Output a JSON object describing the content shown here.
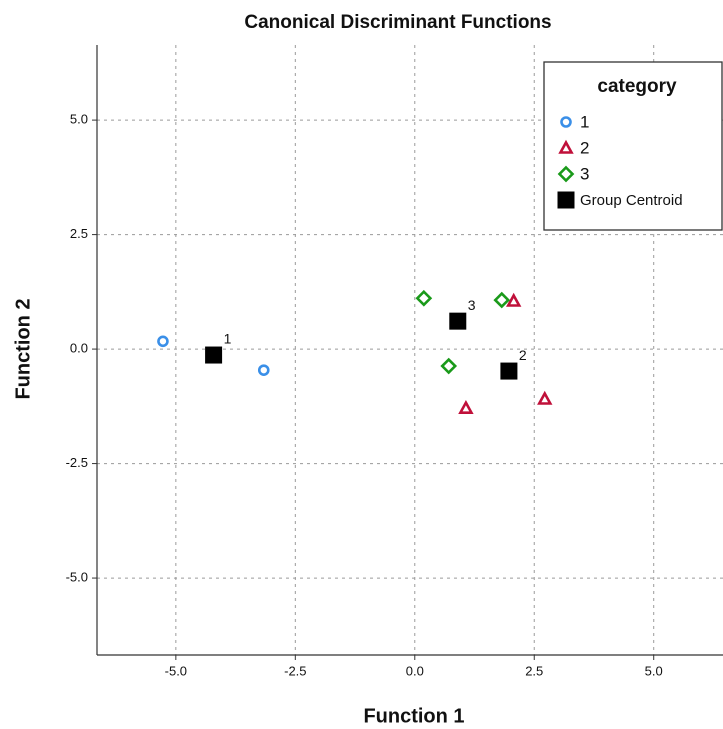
{
  "chart_data": {
    "type": "scatter",
    "title": "Canonical Discriminant Functions",
    "x_label": "Function 1",
    "y_label": "Function 2",
    "xlim": [
      -6.65,
      6.45
    ],
    "ylim": [
      -6.68,
      6.64
    ],
    "xticks": [
      {
        "value": -5,
        "label": "-5.0"
      },
      {
        "value": -2.5,
        "label": "-2.5"
      },
      {
        "value": 0,
        "label": "0.0"
      },
      {
        "value": 2.5,
        "label": "2.5"
      },
      {
        "value": 5,
        "label": "5.0"
      }
    ],
    "yticks": [
      {
        "value": -5,
        "label": "-5.0"
      },
      {
        "value": -2.5,
        "label": "-2.5"
      },
      {
        "value": 0,
        "label": "0.0"
      },
      {
        "value": 2.5,
        "label": "2.5"
      },
      {
        "value": 5,
        "label": "5.0"
      }
    ],
    "grid": true,
    "legend_title": "category",
    "legend_position": "upper right",
    "series": [
      {
        "name": "1",
        "color": "#3a8fe8",
        "marker": "circle",
        "x": [
          -5.27,
          -3.16
        ],
        "y": [
          0.17,
          -0.46
        ]
      },
      {
        "name": "2",
        "color": "#c0103a",
        "marker": "triangle",
        "x": [
          2.07,
          1.07,
          2.72
        ],
        "y": [
          1.05,
          -1.29,
          -1.09
        ]
      },
      {
        "name": "3",
        "color": "#1a9a1a",
        "marker": "diamond",
        "x": [
          0.19,
          1.82,
          0.71
        ],
        "y": [
          1.11,
          1.07,
          -0.37
        ]
      },
      {
        "name": "Group Centroid",
        "color": "#000000",
        "marker": "square",
        "x": [
          -4.21,
          1.97,
          0.9
        ],
        "y": [
          -0.13,
          -0.48,
          0.61
        ],
        "labels": [
          "1",
          "2",
          "3"
        ]
      }
    ]
  }
}
